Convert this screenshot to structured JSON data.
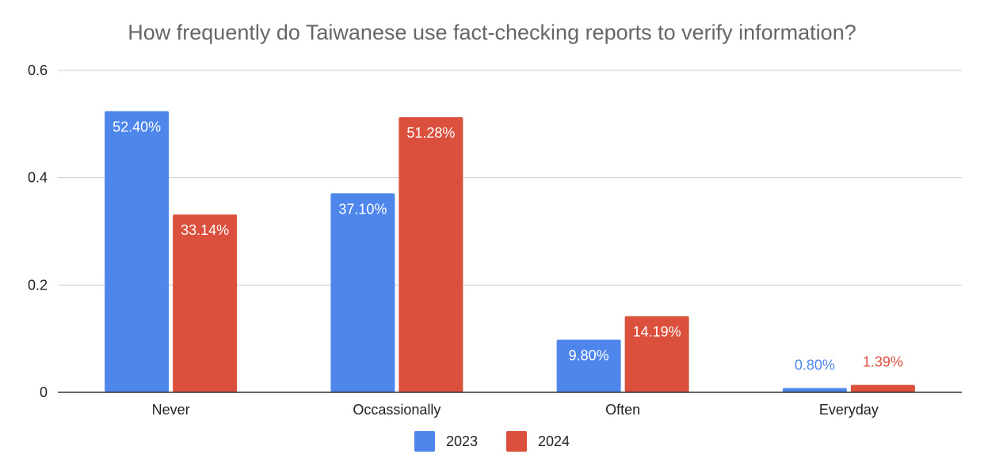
{
  "chart_data": {
    "type": "bar",
    "title": "How frequently do Taiwanese use fact-checking reports to verify information?",
    "categories": [
      "Never",
      "Occassionally",
      "Often",
      "Everyday"
    ],
    "series": [
      {
        "name": "2023",
        "color": "#4f86ec",
        "values": [
          0.524,
          0.371,
          0.098,
          0.008
        ],
        "labels": [
          "52.40%",
          "37.10%",
          "9.80%",
          "0.80%"
        ]
      },
      {
        "name": "2024",
        "color": "#db503c",
        "values": [
          0.3314,
          0.5128,
          0.1419,
          0.0139
        ],
        "labels": [
          "33.14%",
          "51.28%",
          "14.19%",
          "1.39%"
        ]
      }
    ],
    "ylim": [
      0,
      0.6
    ],
    "yticks": [
      0,
      0.2,
      0.4,
      0.6
    ],
    "ytick_labels": [
      "0",
      "0.2",
      "0.4",
      "0.6"
    ],
    "xlabel": "",
    "ylabel": "",
    "grid": true,
    "legend_position": "bottom"
  }
}
